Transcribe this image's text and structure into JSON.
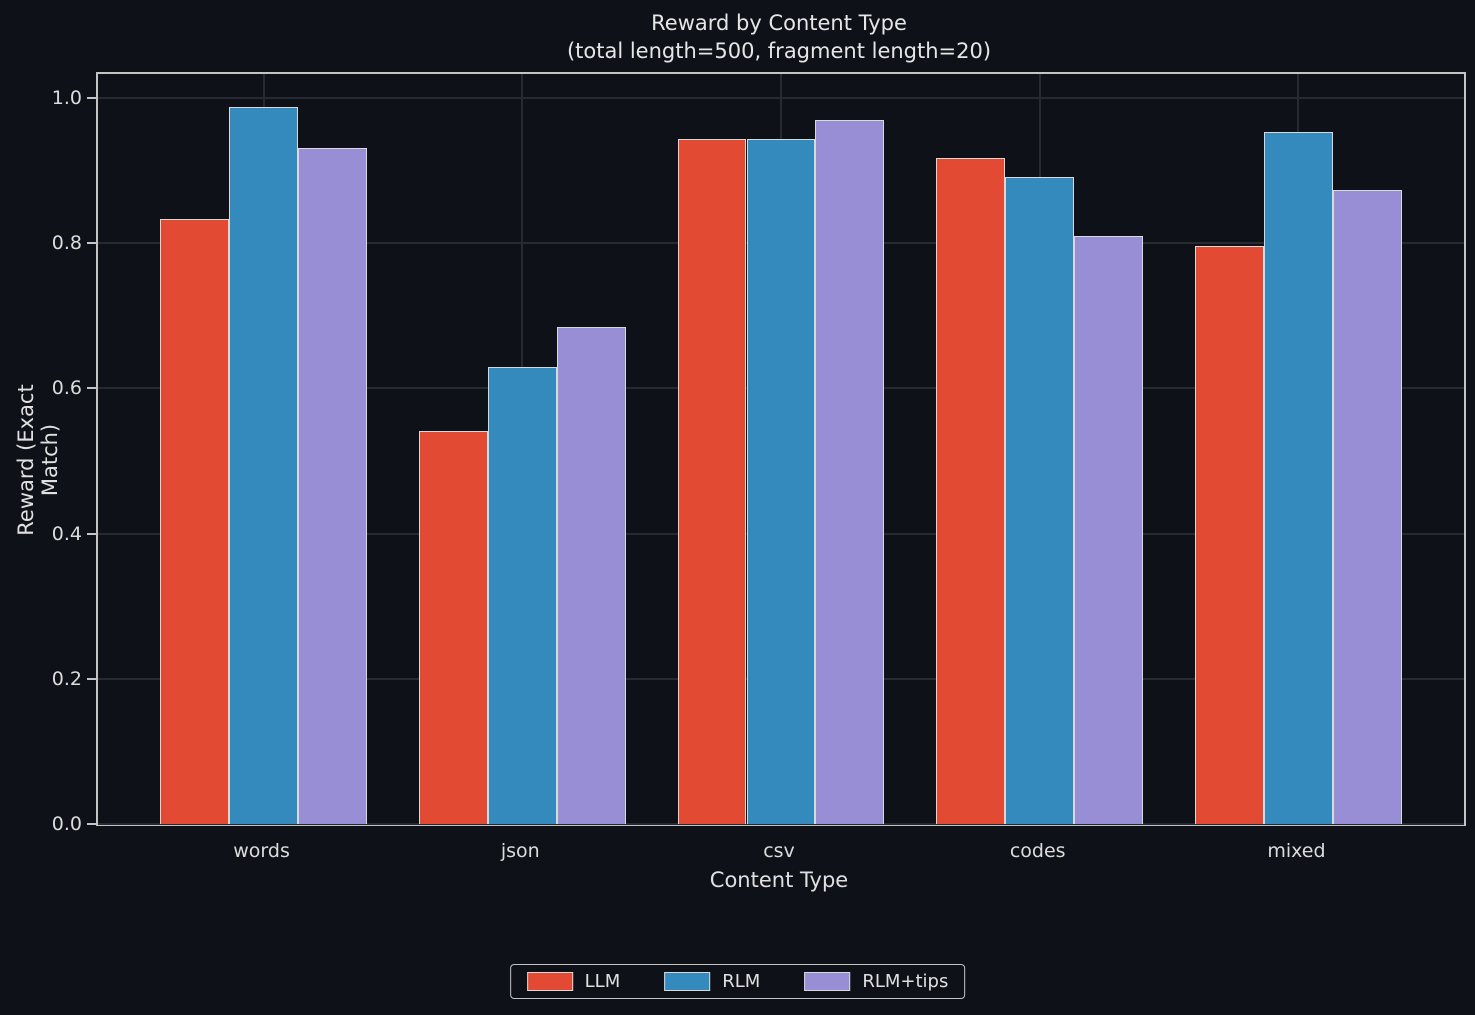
{
  "figure": {
    "title": "Reward by Content Type",
    "subtitle": "(total length=500, fragment length=20)"
  },
  "chart_data": {
    "type": "bar",
    "title": "Reward by Content Type",
    "subtitle": "(total length=500, fragment length=20)",
    "categories": [
      "words",
      "json",
      "csv",
      "codes",
      "mixed"
    ],
    "series": [
      {
        "name": "LLM",
        "color": "#E24A33",
        "values": [
          0.833,
          0.541,
          0.943,
          0.918,
          0.796
        ]
      },
      {
        "name": "RLM",
        "color": "#348ABD",
        "values": [
          0.987,
          0.629,
          0.943,
          0.891,
          0.953
        ]
      },
      {
        "name": "RLM+tips",
        "color": "#988ED5",
        "values": [
          0.931,
          0.685,
          0.97,
          0.81,
          0.873
        ]
      }
    ],
    "xlabel": "Content Type",
    "ylabel": "Reward (Exact Match)",
    "ylim": [
      0,
      1.033
    ],
    "xlim": [
      -0.64,
      4.64
    ],
    "yticks": [
      0.0,
      0.2,
      0.4,
      0.6,
      0.8,
      1.0
    ],
    "ytick_labels": [
      "0.0",
      "0.2",
      "0.4",
      "0.6",
      "0.8",
      "1.0"
    ],
    "grid": true,
    "bar_group_width": 0.8,
    "legend_position": "bottom-center",
    "colors": {
      "background": "#0e1117",
      "grid": "#262a31",
      "spine": "#c4c4c4",
      "text": "#e0e0e0",
      "bar_edge": "#d9d9d9"
    }
  }
}
